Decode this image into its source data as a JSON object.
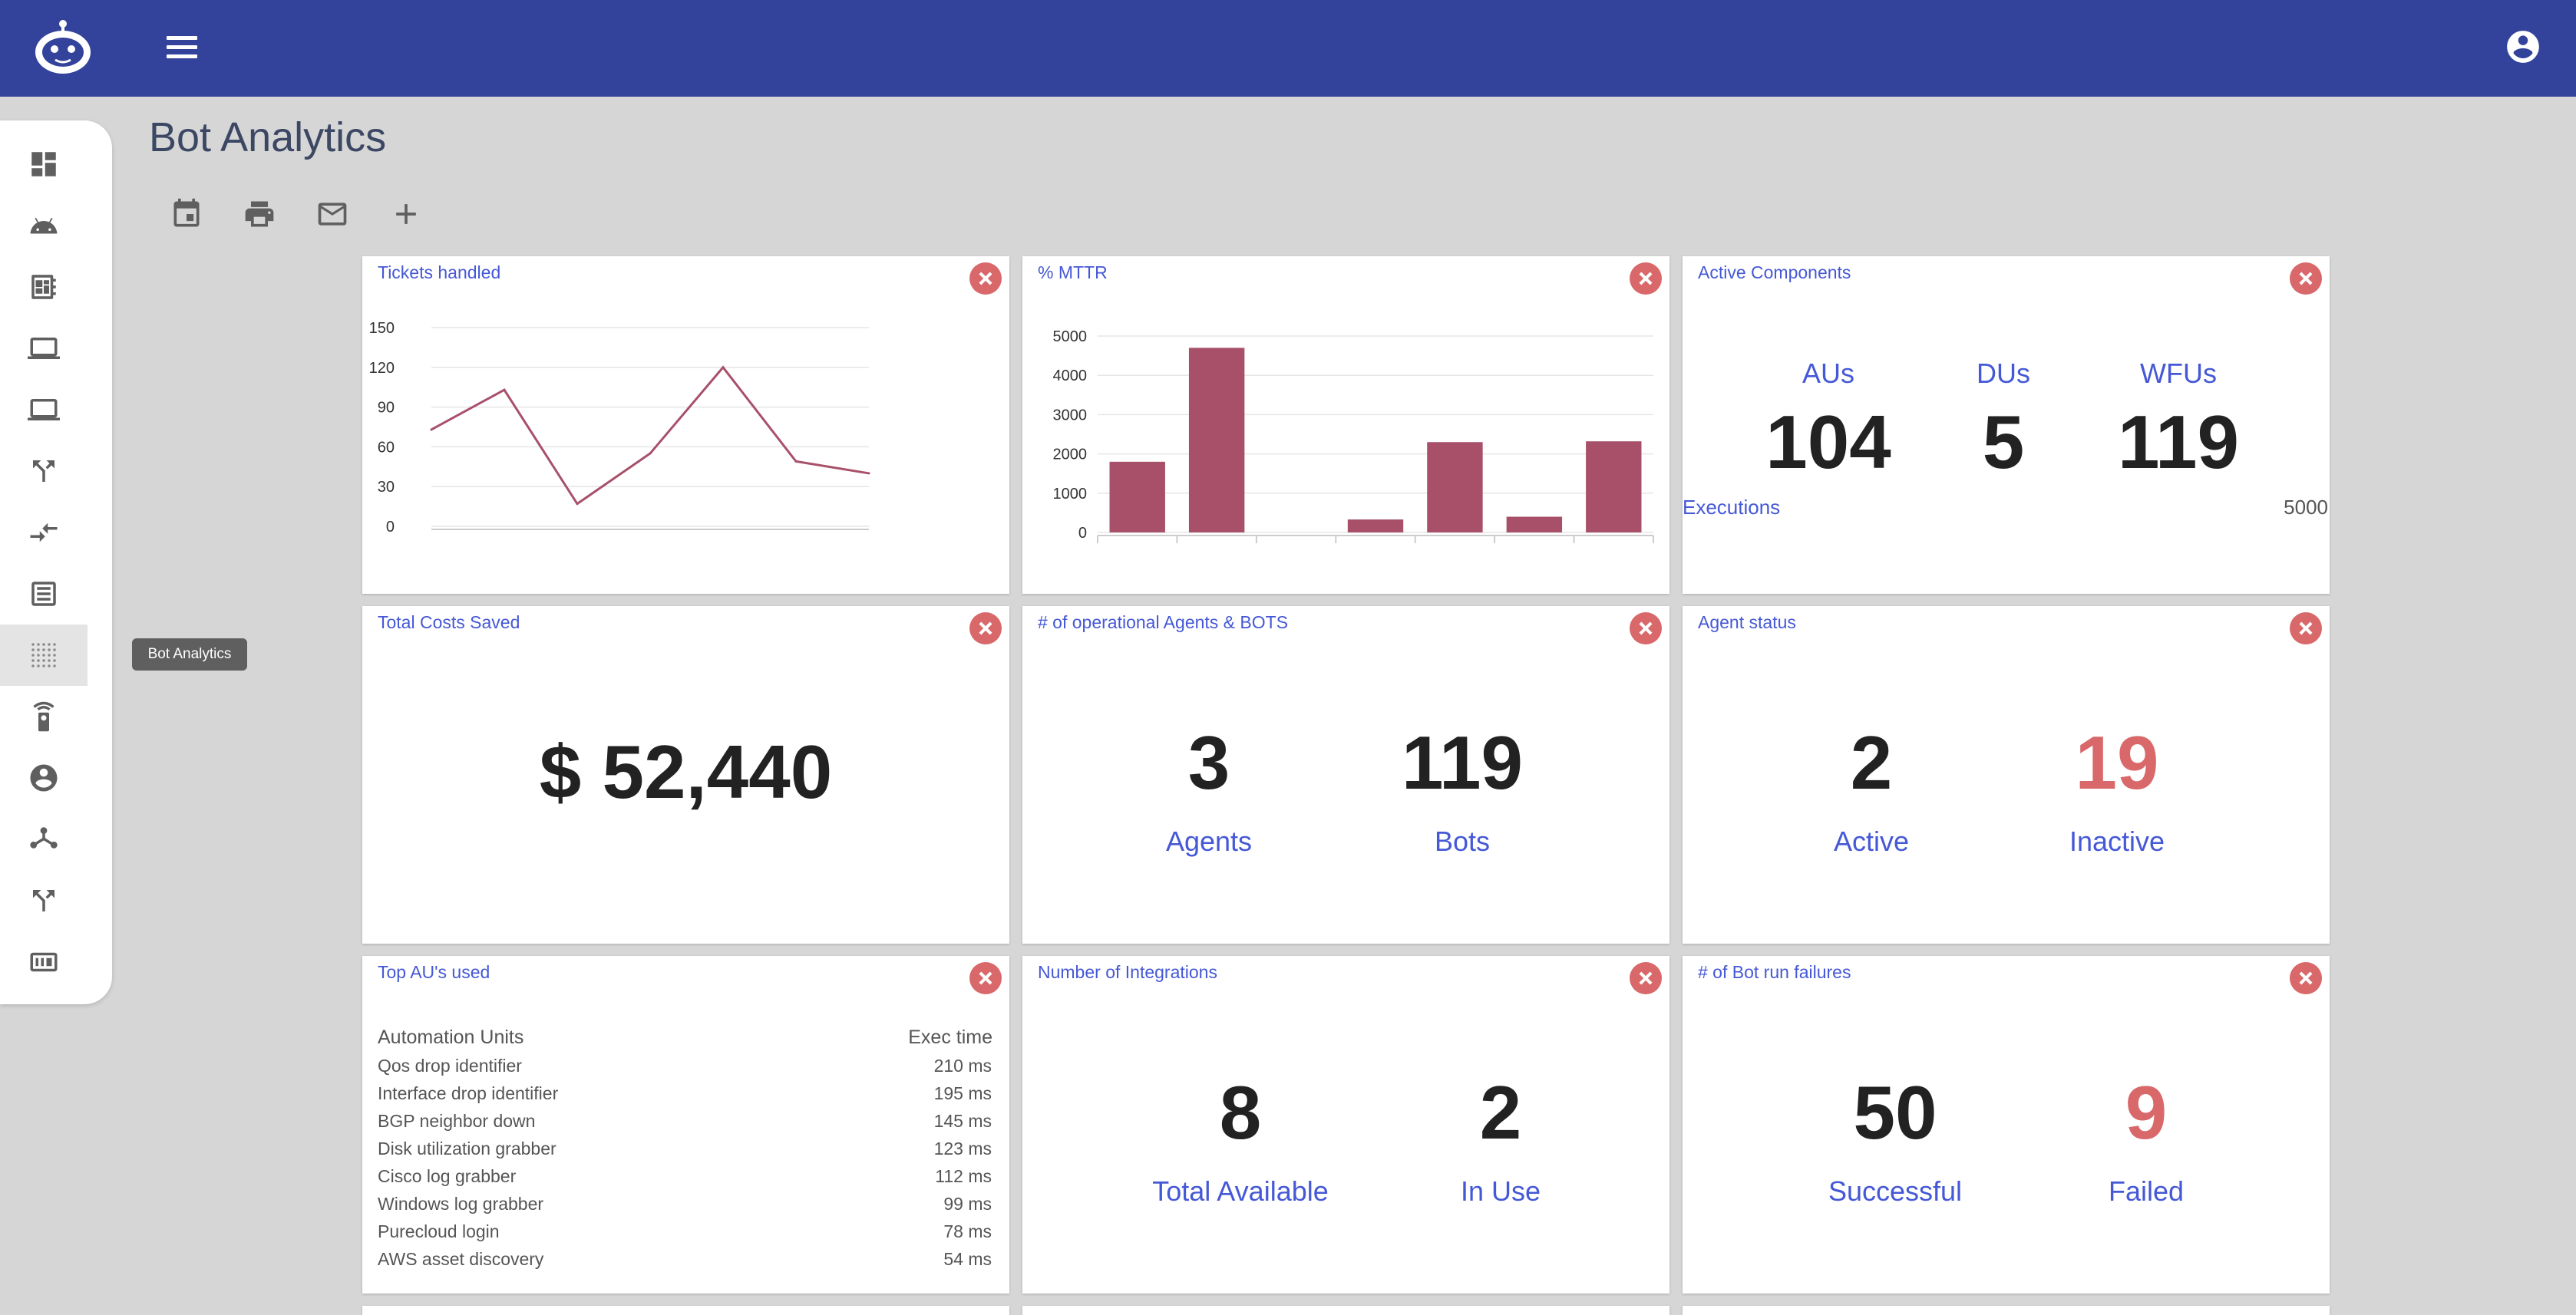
{
  "page": {
    "title": "Bot Analytics"
  },
  "icons": {
    "logo": "robot-logo-icon",
    "menu": "hamburger-menu-icon",
    "account": "account-circle-icon",
    "toolbar": [
      "calendar-icon",
      "print-icon",
      "mail-icon",
      "add-icon"
    ],
    "sidebar": [
      "dashboard-icon",
      "android-icon",
      "ledger-icon",
      "laptop-icon",
      "laptop-icon",
      "call-split-icon",
      "merge-icon",
      "list-icon",
      "grid-dots-icon",
      "remote-icon",
      "account-circle-icon",
      "hub-icon",
      "call-split-icon",
      "counter-icon"
    ]
  },
  "sidebar": {
    "tooltip": "Bot Analytics",
    "active_index": 8
  },
  "colors": {
    "topbar": "#33429a",
    "accent": "#4558d6",
    "bar": "#a8506a",
    "line": "#a8506a",
    "danger": "#d9686a"
  },
  "cards": {
    "tickets": {
      "title": "Tickets handled"
    },
    "mttr": {
      "title": "% MTTR"
    },
    "active_components": {
      "title": "Active Components",
      "items": [
        {
          "label": "AUs",
          "value": "104"
        },
        {
          "label": "DUs",
          "value": "5"
        },
        {
          "label": "WFUs",
          "value": "119"
        }
      ],
      "executions_label": "Executions",
      "executions_value": "5000"
    },
    "costs": {
      "title": "Total Costs Saved",
      "value": "$ 52,440"
    },
    "operational": {
      "title": "# of operational Agents & BOTS",
      "items": [
        {
          "label": "Agents",
          "value": "3"
        },
        {
          "label": "Bots",
          "value": "119"
        }
      ]
    },
    "agent_status": {
      "title": "Agent status",
      "items": [
        {
          "label": "Active",
          "value": "2"
        },
        {
          "label": "Inactive",
          "value": "19"
        }
      ]
    },
    "top_au": {
      "title": "Top AU's used",
      "col1": "Automation Units",
      "col2": "Exec time",
      "rows": [
        {
          "name": "Qos drop identifier",
          "time": "210 ms"
        },
        {
          "name": "Interface drop identifier",
          "time": "195 ms"
        },
        {
          "name": "BGP neighbor down",
          "time": "145 ms"
        },
        {
          "name": "Disk utilization grabber",
          "time": "123 ms"
        },
        {
          "name": "Cisco log grabber",
          "time": "112 ms"
        },
        {
          "name": "Windows log grabber",
          "time": "99 ms"
        },
        {
          "name": "Purecloud login",
          "time": "78 ms"
        },
        {
          "name": "AWS asset discovery",
          "time": "54 ms"
        }
      ]
    },
    "integrations": {
      "title": "Number of Integrations",
      "items": [
        {
          "label": "Total Available",
          "value": "8"
        },
        {
          "label": "In Use",
          "value": "2"
        }
      ]
    },
    "failures": {
      "title": "# of Bot run failures",
      "items": [
        {
          "label": "Successful",
          "value": "50"
        },
        {
          "label": "Failed",
          "value": "9"
        }
      ]
    }
  },
  "chart_data": [
    {
      "type": "line",
      "title": "Tickets handled",
      "ylim": [
        0,
        150
      ],
      "yticks": [
        0,
        30,
        60,
        90,
        120,
        150
      ],
      "values": [
        73,
        103,
        17,
        55,
        120,
        49,
        40
      ]
    },
    {
      "type": "bar",
      "title": "% MTTR",
      "ylim": [
        0,
        5000
      ],
      "yticks": [
        0,
        1000,
        2000,
        3000,
        4000,
        5000
      ],
      "values": [
        1800,
        4700,
        0,
        330,
        2300,
        400,
        2320
      ]
    }
  ]
}
